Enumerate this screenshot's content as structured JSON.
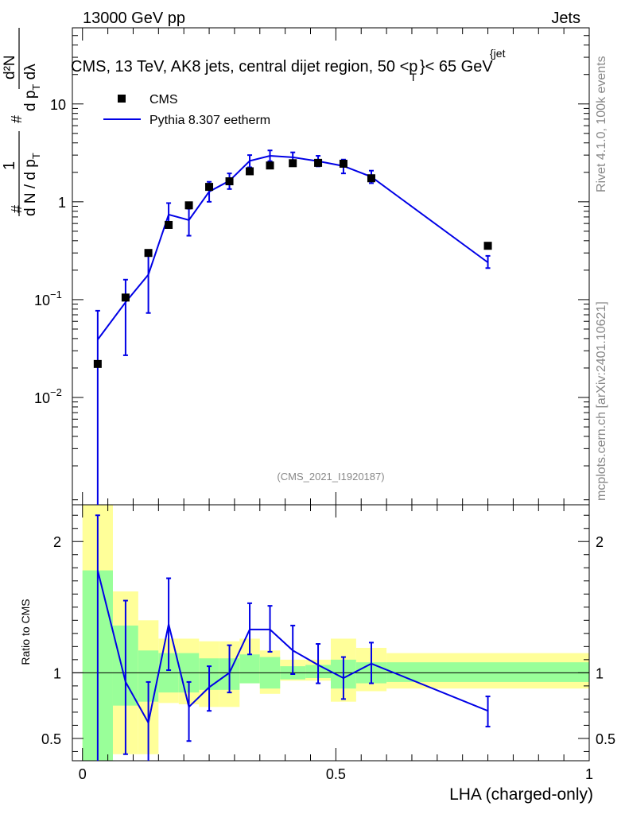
{
  "header": {
    "left": "13000 GeV pp",
    "right": "Jets"
  },
  "main_title": "CMS, 13 TeV, AK8 jets, central dijet region, 50 <p",
  "main_title_sup": "{jet",
  "main_title_sub": "T",
  "main_title_end": "}< 65 GeV",
  "side_labels": {
    "rivet": "Rivet 4.1.0,  100k events",
    "mcplots": "mcplots.cern.ch [arXiv:2401.10621]"
  },
  "analysis_id": "(CMS_2021_I1920187)",
  "ylabel_main": {
    "num1": "1",
    "den1": "d N / d p",
    "den1_sub": "T",
    "num2": "d²N",
    "den2": "d p",
    "den2_sub": "T",
    "den2_end": " dλ",
    "hash": "#"
  },
  "ylabel_ratio": "Ratio to CMS",
  "xlabel": "LHA (charged-only)",
  "legend": {
    "data": "CMS",
    "mc": "Pythia 8.307 eetherm"
  },
  "colors": {
    "data": "#000000",
    "mc": "#0000e6",
    "band_inner": "#99ff99",
    "band_outer": "#ffff99"
  },
  "chart_data": {
    "type": "scatter",
    "title": "CMS, 13 TeV, AK8 jets, central dijet region, 50 < pT jet < 65 GeV",
    "xlabel": "LHA (charged-only)",
    "ylabel": "1/(dN/dpT) d²N/(dpT dλ)",
    "xlim": [
      -0.02,
      1.0
    ],
    "ylim_main": [
      0.0008,
      60
    ],
    "ylim_ratio": [
      0.33,
      2.28
    ],
    "yscale_main": "log",
    "main_ticks": [
      {
        "value": 10,
        "label": "10"
      },
      {
        "value": 1,
        "label": "1"
      },
      {
        "value": 0.1,
        "label": "10",
        "sup": "−1"
      },
      {
        "value": 0.01,
        "label": "10",
        "sup": "−2"
      }
    ],
    "ratio_ticks": [
      {
        "value": 2,
        "label": "2"
      },
      {
        "value": 1,
        "label": "1"
      },
      {
        "value": 0.5,
        "label": "0.5"
      }
    ],
    "x_ticks": [
      {
        "value": 0,
        "label": "0"
      },
      {
        "value": 0.5,
        "label": "0.5"
      },
      {
        "value": 1,
        "label": "1"
      }
    ],
    "bins": [
      0.0,
      0.06,
      0.11,
      0.15,
      0.19,
      0.23,
      0.27,
      0.31,
      0.35,
      0.39,
      0.44,
      0.49,
      0.54,
      0.6,
      1.0
    ],
    "x": [
      0.03,
      0.085,
      0.13,
      0.17,
      0.21,
      0.25,
      0.29,
      0.33,
      0.37,
      0.415,
      0.465,
      0.515,
      0.57,
      0.8
    ],
    "series": [
      {
        "name": "CMS",
        "values": [
          0.022,
          0.105,
          0.3,
          0.58,
          0.92,
          1.42,
          1.62,
          2.05,
          2.35,
          2.48,
          2.5,
          2.45,
          1.74,
          0.355
        ]
      },
      {
        "name": "Pythia 8.307 eetherm",
        "values": [
          0.039,
          0.094,
          0.18,
          0.74,
          0.65,
          1.27,
          1.64,
          2.62,
          2.95,
          2.85,
          2.6,
          2.32,
          1.8,
          0.24
        ],
        "err_low": [
          0.0005,
          0.027,
          0.073,
          0.56,
          0.45,
          1.0,
          1.35,
          2.25,
          2.6,
          2.5,
          2.3,
          1.95,
          1.55,
          0.21
        ],
        "err_high": [
          0.077,
          0.16,
          0.28,
          0.97,
          0.85,
          1.6,
          1.95,
          3.0,
          3.35,
          3.2,
          2.95,
          2.7,
          2.08,
          0.28
        ]
      }
    ],
    "ratio": {
      "values": [
        1.78,
        0.93,
        0.62,
        1.37,
        0.74,
        0.89,
        1.0,
        1.33,
        1.33,
        1.17,
        1.06,
        0.96,
        1.07,
        0.71
      ],
      "err_low": [
        0.0,
        0.38,
        0.3,
        1.02,
        0.48,
        0.71,
        0.85,
        1.14,
        1.16,
        0.99,
        0.92,
        0.8,
        0.92,
        0.59
      ],
      "err_high": [
        2.2,
        1.55,
        0.93,
        1.72,
        0.93,
        1.05,
        1.21,
        1.53,
        1.51,
        1.36,
        1.22,
        1.12,
        1.23,
        0.82
      ],
      "band_inner": [
        [
          0.33,
          1.78
        ],
        [
          0.75,
          1.36
        ],
        [
          0.78,
          1.17
        ],
        [
          0.85,
          1.15
        ],
        [
          0.85,
          1.15
        ],
        [
          0.87,
          1.11
        ],
        [
          0.87,
          1.11
        ],
        [
          0.92,
          1.14
        ],
        [
          0.88,
          1.12
        ],
        [
          0.95,
          1.05
        ],
        [
          0.96,
          1.06
        ],
        [
          0.88,
          1.1
        ],
        [
          0.92,
          1.08
        ],
        [
          0.93,
          1.08
        ]
      ],
      "band_outer": [
        [
          0.33,
          2.28
        ],
        [
          0.38,
          1.62
        ],
        [
          0.38,
          1.4
        ],
        [
          0.77,
          1.26
        ],
        [
          0.76,
          1.26
        ],
        [
          0.74,
          1.24
        ],
        [
          0.74,
          1.24
        ],
        [
          0.92,
          1.26
        ],
        [
          0.84,
          1.17
        ],
        [
          0.94,
          1.1
        ],
        [
          0.94,
          1.1
        ],
        [
          0.78,
          1.26
        ],
        [
          0.86,
          1.19
        ],
        [
          0.88,
          1.15
        ]
      ]
    }
  }
}
